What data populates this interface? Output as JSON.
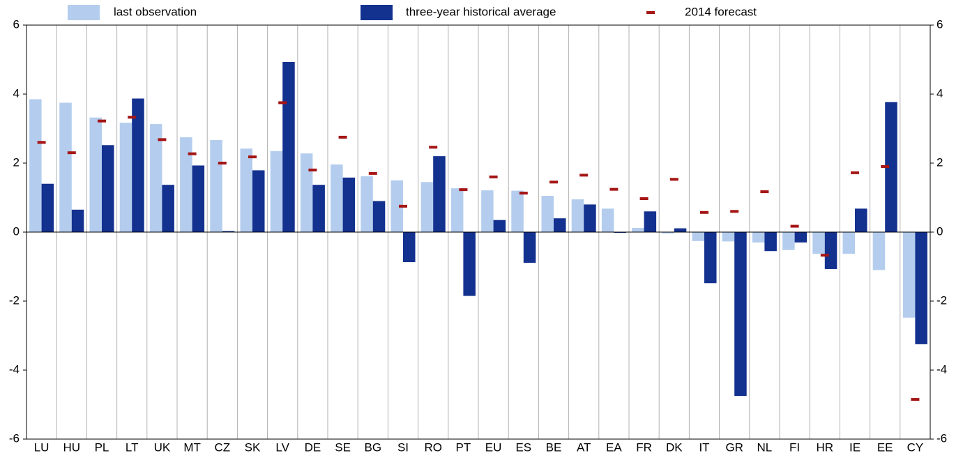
{
  "chart_data": {
    "type": "bar",
    "categories": [
      "LU",
      "HU",
      "PL",
      "LT",
      "UK",
      "MT",
      "CZ",
      "SK",
      "LV",
      "DE",
      "SE",
      "BG",
      "SI",
      "RO",
      "PT",
      "EU",
      "ES",
      "BE",
      "AT",
      "EA",
      "FR",
      "DK",
      "IT",
      "GR",
      "NL",
      "FI",
      "HR",
      "IE",
      "EE",
      "CY"
    ],
    "series": [
      {
        "name": "last observation",
        "color": "#b4cdee",
        "values": [
          3.85,
          3.75,
          3.32,
          3.17,
          3.13,
          2.75,
          2.67,
          2.42,
          2.35,
          2.28,
          1.96,
          1.62,
          1.5,
          1.45,
          1.27,
          1.21,
          1.2,
          1.05,
          0.95,
          0.68,
          0.12,
          -0.04,
          -0.26,
          -0.27,
          -0.3,
          -0.52,
          -0.63,
          -0.63,
          -1.1,
          -2.48
        ]
      },
      {
        "name": "three-year historical average",
        "color": "#13318f",
        "values": [
          1.4,
          0.65,
          2.52,
          3.87,
          1.37,
          1.93,
          0.03,
          1.79,
          4.93,
          1.37,
          1.58,
          0.9,
          -0.87,
          2.2,
          -1.85,
          0.35,
          -0.89,
          0.4,
          0.8,
          -0.02,
          0.6,
          0.11,
          -1.48,
          -4.75,
          -0.55,
          -0.3,
          -1.07,
          0.68,
          3.77,
          -3.25
        ]
      },
      {
        "name": "2014 forecast",
        "color": "#a51515",
        "type": "marker",
        "values": [
          2.6,
          2.3,
          3.22,
          3.33,
          2.68,
          2.27,
          2.0,
          2.18,
          3.75,
          1.8,
          2.75,
          1.7,
          0.75,
          2.46,
          1.23,
          1.6,
          1.13,
          1.45,
          1.65,
          1.24,
          0.97,
          1.53,
          0.57,
          0.6,
          1.17,
          0.17,
          -0.67,
          1.72,
          1.9,
          -4.85
        ]
      }
    ],
    "ylim": [
      -6,
      6
    ],
    "yticks": [
      -6,
      -4,
      -2,
      0,
      2,
      4,
      6
    ]
  }
}
